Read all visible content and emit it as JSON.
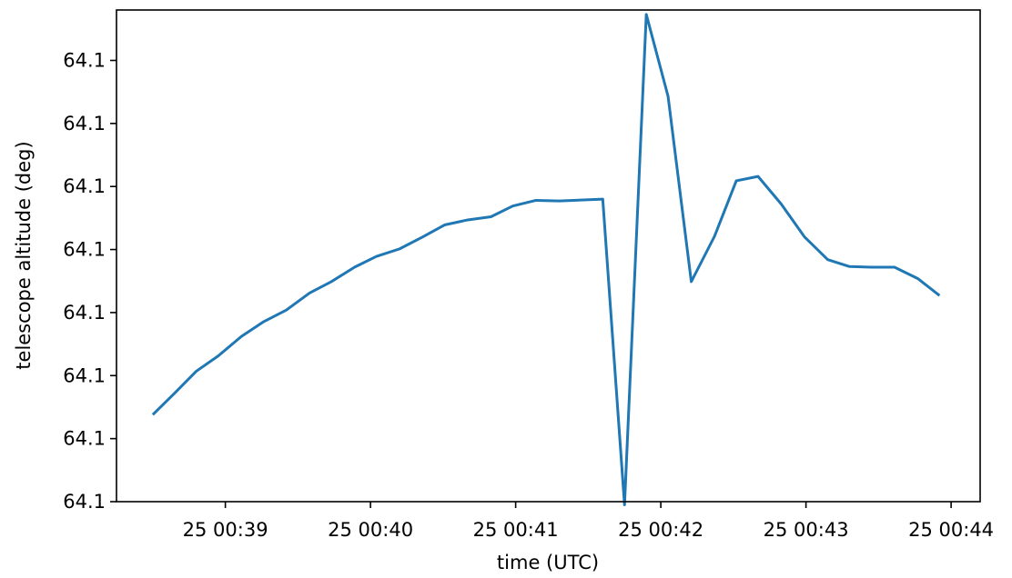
{
  "chart_data": {
    "type": "line",
    "title": "",
    "xlabel": "time (UTC)",
    "ylabel": "telescope altitude (deg)",
    "x_ticks": [
      "25 00:39",
      "25 00:40",
      "25 00:41",
      "25 00:42",
      "25 00:43",
      "25 00:44"
    ],
    "y_ticks": [
      "64.1",
      "64.1",
      "64.1",
      "64.1",
      "64.1",
      "64.1",
      "64.1",
      "64.1"
    ],
    "x_range_minutes": [
      38.25,
      44.2
    ],
    "y_range_relative": [
      0.0,
      7.8
    ],
    "grid": false,
    "legend": "none",
    "series": [
      {
        "color": "#1f77b4",
        "x_minutes": [
          38.5,
          38.65,
          38.8,
          38.95,
          39.11,
          39.26,
          39.42,
          39.58,
          39.73,
          39.89,
          40.04,
          40.2,
          40.36,
          40.51,
          40.67,
          40.83,
          40.98,
          41.14,
          41.3,
          41.6,
          41.75,
          41.9,
          42.05,
          42.21,
          42.37,
          42.52,
          42.67,
          42.83,
          42.99,
          43.15,
          43.3,
          43.45,
          43.61,
          43.77,
          43.92
        ],
        "y_relative": [
          1.38,
          1.72,
          2.07,
          2.31,
          2.62,
          2.85,
          3.04,
          3.31,
          3.49,
          3.72,
          3.89,
          4.01,
          4.2,
          4.39,
          4.47,
          4.52,
          4.69,
          4.78,
          4.77,
          4.8,
          -0.05,
          7.73,
          6.43,
          3.49,
          4.21,
          5.09,
          5.16,
          4.72,
          4.2,
          3.84,
          3.73,
          3.72,
          3.72,
          3.54,
          3.27
        ]
      }
    ]
  }
}
